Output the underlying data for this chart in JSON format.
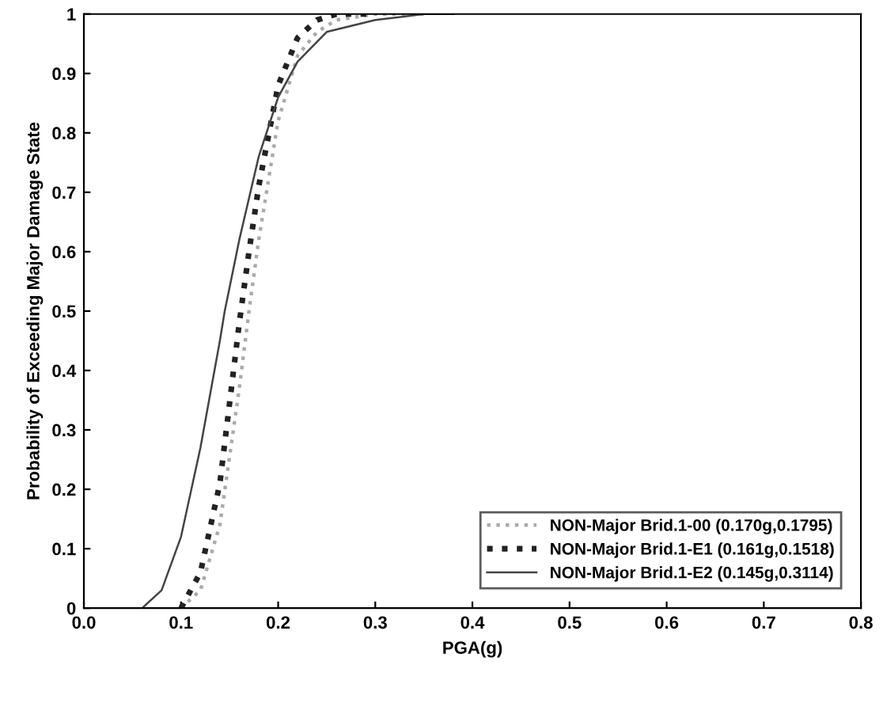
{
  "chart_data": {
    "type": "line",
    "xlabel": "PGA(g)",
    "ylabel": "Probability of Exceeding Major Damage State",
    "xlim": [
      0,
      0.8
    ],
    "ylim": [
      0,
      1
    ],
    "xticks": [
      {
        "value": 0,
        "label": "0.0"
      },
      {
        "value": 0.1,
        "label": "0.1"
      },
      {
        "value": 0.2,
        "label": "0.2"
      },
      {
        "value": 0.3,
        "label": "0.3"
      },
      {
        "value": 0.4,
        "label": "0.4"
      },
      {
        "value": 0.5,
        "label": "0.5"
      },
      {
        "value": 0.6,
        "label": "0.6"
      },
      {
        "value": 0.7,
        "label": "0.7"
      },
      {
        "value": 0.8,
        "label": "0.8"
      }
    ],
    "yticks": [
      0,
      0.1,
      0.2,
      0.3,
      0.4,
      0.5,
      0.6,
      0.7,
      0.8,
      0.9,
      1
    ],
    "grid": false,
    "legend": "bottom right",
    "marker": "none",
    "series": [
      {
        "name": "NON-Major Brid.1-00 (0.170g,0.1795)",
        "color": "#aaaaaa",
        "line_style": "dotted",
        "x": [
          0.1,
          0.12,
          0.14,
          0.16,
          0.17,
          0.18,
          0.2,
          0.22,
          0.24,
          0.26,
          0.28,
          0.3,
          0.35
        ],
        "values": [
          0,
          0.03,
          0.14,
          0.37,
          0.5,
          0.62,
          0.82,
          0.93,
          0.97,
          0.99,
          0.995,
          1,
          1
        ]
      },
      {
        "name": "NON-Major Brid.1-E1 (0.161g,0.1518)",
        "color": "#222222",
        "line_style": "dotted",
        "x": [
          0.1,
          0.12,
          0.14,
          0.16,
          0.17,
          0.18,
          0.2,
          0.22,
          0.24,
          0.26,
          0.3
        ],
        "values": [
          0,
          0.06,
          0.21,
          0.48,
          0.6,
          0.71,
          0.88,
          0.96,
          0.99,
          1,
          1
        ]
      },
      {
        "name": "NON-Major Brid.1-E2 (0.145g,0.3114)",
        "color": "#444444",
        "line_style": "solid",
        "x": [
          0.06,
          0.08,
          0.1,
          0.12,
          0.14,
          0.145,
          0.16,
          0.18,
          0.2,
          0.22,
          0.25,
          0.3,
          0.35,
          0.38
        ],
        "values": [
          0,
          0.03,
          0.12,
          0.27,
          0.45,
          0.5,
          0.62,
          0.76,
          0.86,
          0.92,
          0.97,
          0.99,
          1,
          1
        ]
      }
    ]
  }
}
